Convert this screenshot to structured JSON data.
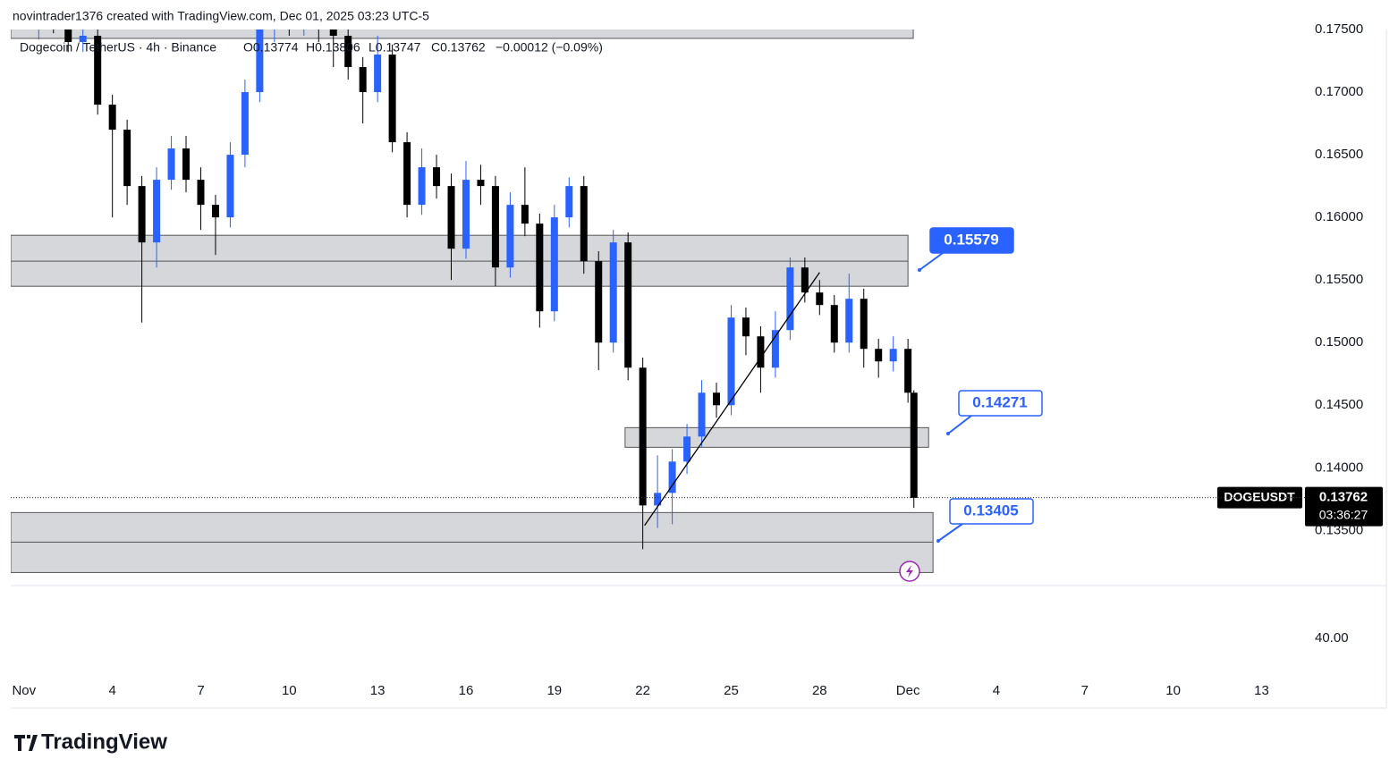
{
  "header": "novintrader1376 created with TradingView.com, Dec 01, 2025 03:23 UTC-5",
  "chart_data": {
    "type": "candlestick",
    "legend": {
      "symbol": "Dogecoin / TetherUS · 4h · Binance",
      "open": "O0.13774",
      "high": "H0.13806",
      "low": "L0.13747",
      "close": "C0.13762",
      "change": "−0.00012 (−0.09%)"
    },
    "up_color": "#2962ff",
    "down_color": "#000000",
    "x": [
      0.5,
      1,
      1.5,
      2,
      2.5,
      3,
      3.5,
      4,
      4.5,
      5,
      5.5,
      6,
      6.5,
      7,
      7.5,
      8,
      8.5,
      9,
      9.5,
      10,
      10.5,
      11,
      11.5,
      12,
      12.5,
      13,
      13.5,
      14,
      14.5,
      15,
      15.5,
      16,
      16.5,
      17,
      17.5,
      18,
      18.5,
      19,
      19.5,
      20,
      20.5,
      21,
      21.5,
      22,
      22.5,
      23,
      23.5,
      24,
      24.5,
      25,
      25.5,
      26,
      26.5,
      27,
      27.5,
      28,
      28.5,
      29,
      29.5,
      30,
      30.2
    ],
    "open": [
      0.175,
      0.176,
      0.1755,
      0.174,
      0.1745,
      0.169,
      0.167,
      0.1625,
      0.158,
      0.163,
      0.1655,
      0.163,
      0.161,
      0.16,
      0.165,
      0.17,
      0.175,
      0.1765,
      0.176,
      0.177,
      0.1755,
      0.1745,
      0.172,
      0.17,
      0.173,
      0.166,
      0.161,
      0.164,
      0.1625,
      0.1575,
      0.163,
      0.1625,
      0.156,
      0.161,
      0.1595,
      0.1525,
      0.16,
      0.1625,
      0.1565,
      0.15,
      0.158,
      0.148,
      0.137,
      0.138,
      0.1405,
      0.1425,
      0.146,
      0.145,
      0.152,
      0.1505,
      0.148,
      0.151,
      0.156,
      0.154,
      0.153,
      0.15,
      0.1535,
      0.1495,
      0.1485,
      0.1495,
      0.146
    ],
    "high": [
      0.1768,
      0.1768,
      0.1763,
      0.1753,
      0.1753,
      0.1698,
      0.1678,
      0.1633,
      0.164,
      0.1665,
      0.1665,
      0.164,
      0.1618,
      0.166,
      0.171,
      0.176,
      0.1775,
      0.1775,
      0.178,
      0.1778,
      0.1763,
      0.1753,
      0.1728,
      0.1745,
      0.1738,
      0.1668,
      0.1655,
      0.165,
      0.1635,
      0.1645,
      0.1642,
      0.1633,
      0.162,
      0.164,
      0.1603,
      0.161,
      0.1632,
      0.1633,
      0.1573,
      0.159,
      0.1588,
      0.1488,
      0.141,
      0.1415,
      0.1435,
      0.147,
      0.1468,
      0.153,
      0.1528,
      0.1513,
      0.1525,
      0.1568,
      0.1568,
      0.155,
      0.1538,
      0.1555,
      0.1543,
      0.1503,
      0.1505,
      0.1503,
      0.1462
    ],
    "low": [
      0.1742,
      0.1747,
      0.1732,
      0.1732,
      0.1682,
      0.16,
      0.161,
      0.1516,
      0.156,
      0.1622,
      0.162,
      0.159,
      0.157,
      0.1592,
      0.164,
      0.1692,
      0.174,
      0.1745,
      0.1745,
      0.174,
      0.172,
      0.171,
      0.1675,
      0.1692,
      0.1652,
      0.16,
      0.1602,
      0.1615,
      0.155,
      0.1567,
      0.161,
      0.1545,
      0.1552,
      0.1585,
      0.1512,
      0.1517,
      0.1592,
      0.1555,
      0.1478,
      0.1492,
      0.147,
      0.1335,
      0.1352,
      0.1355,
      0.1395,
      0.1417,
      0.144,
      0.1442,
      0.149,
      0.146,
      0.1472,
      0.1502,
      0.1532,
      0.1522,
      0.1492,
      0.1492,
      0.148,
      0.1472,
      0.1477,
      0.1452,
      0.1368
    ],
    "close": [
      0.176,
      0.1755,
      0.174,
      0.1745,
      0.169,
      0.167,
      0.1625,
      0.158,
      0.163,
      0.1655,
      0.163,
      0.161,
      0.16,
      0.165,
      0.17,
      0.175,
      0.1765,
      0.176,
      0.177,
      0.1755,
      0.1745,
      0.172,
      0.17,
      0.173,
      0.166,
      0.161,
      0.164,
      0.1625,
      0.1575,
      0.163,
      0.1625,
      0.156,
      0.161,
      0.1595,
      0.1525,
      0.16,
      0.1625,
      0.1565,
      0.15,
      0.158,
      0.148,
      0.137,
      0.138,
      0.1405,
      0.1425,
      0.146,
      0.145,
      0.152,
      0.1505,
      0.148,
      0.151,
      0.156,
      0.154,
      0.153,
      0.15,
      0.1535,
      0.1495,
      0.1485,
      0.1495,
      0.146,
      0.1376
    ],
    "xlim": [
      -0.45,
      43.2
    ],
    "xticks": [
      {
        "value": 0,
        "label": "Nov"
      },
      {
        "value": 3,
        "label": "4"
      },
      {
        "value": 6,
        "label": "7"
      },
      {
        "value": 9,
        "label": "10"
      },
      {
        "value": 12,
        "label": "13"
      },
      {
        "value": 15,
        "label": "16"
      },
      {
        "value": 18,
        "label": "19"
      },
      {
        "value": 21,
        "label": "22"
      },
      {
        "value": 24,
        "label": "25"
      },
      {
        "value": 27,
        "label": "28"
      },
      {
        "value": 30,
        "label": "Dec"
      },
      {
        "value": 33,
        "label": "4"
      },
      {
        "value": 36,
        "label": "7"
      },
      {
        "value": 39,
        "label": "10"
      },
      {
        "value": 42,
        "label": "13"
      }
    ],
    "ylim": [
      0.1306,
      0.175
    ],
    "yticks": [
      {
        "value": 0.135,
        "label": "0.13500"
      },
      {
        "value": 0.14,
        "label": "0.14000"
      },
      {
        "value": 0.145,
        "label": "0.14500"
      },
      {
        "value": 0.15,
        "label": "0.15000"
      },
      {
        "value": 0.155,
        "label": "0.15500"
      },
      {
        "value": 0.16,
        "label": "0.16000"
      },
      {
        "value": 0.165,
        "label": "0.16500"
      },
      {
        "value": 0.17,
        "label": "0.17000"
      },
      {
        "value": 0.175,
        "label": "0.17500"
      }
    ],
    "zones": [
      {
        "top": 0.1757,
        "bottom": 0.17429,
        "x": [
          -0.45,
          30.18
        ]
      },
      {
        "top": 0.15857,
        "bottom": 0.1545,
        "mid": 0.1565,
        "x": [
          -0.45,
          30
        ]
      },
      {
        "top": 0.14321,
        "bottom": 0.14164,
        "x": [
          20.4,
          30.7
        ]
      },
      {
        "top": 0.13643,
        "bottom": 0.13164,
        "mid": 0.13407,
        "x": [
          -0.45,
          30.85
        ]
      }
    ],
    "trendline": {
      "x": [
        21.06,
        27
      ],
      "y": [
        0.1354,
        0.1556
      ]
    },
    "annotations": [
      0.15579,
      0.14271,
      0.13405
    ],
    "last_price": {
      "symbol": "DOGEUSDT",
      "value": 0.13762,
      "countdown": "03:36:27"
    },
    "lower_pane_tick": {
      "value": 40,
      "label": "40.00"
    }
  },
  "footer": "TradingView"
}
